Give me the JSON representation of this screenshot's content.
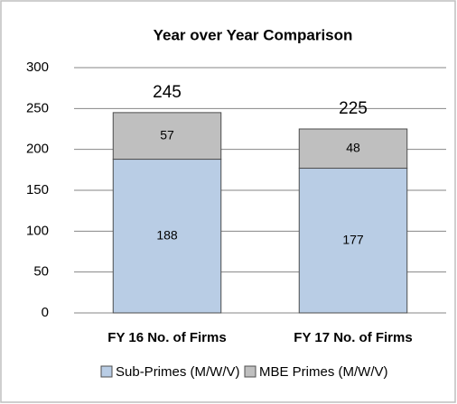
{
  "chart_data": {
    "type": "stacked_bar",
    "title": "Year over Year Comparison",
    "categories": [
      "FY 16 No. of Firms",
      "FY 17 No. of Firms"
    ],
    "series": [
      {
        "name": "Sub-Primes (M/W/V)",
        "color": "#b9cde5",
        "values": [
          188,
          177
        ]
      },
      {
        "name": "MBE Primes (M/W/V)",
        "color": "#bfbfbf",
        "values": [
          57,
          48
        ]
      }
    ],
    "totals": [
      245,
      225
    ],
    "ylim": [
      0,
      300
    ],
    "yticks": [
      0,
      50,
      100,
      150,
      200,
      250,
      300
    ],
    "grid": true,
    "legend": "bottom"
  }
}
